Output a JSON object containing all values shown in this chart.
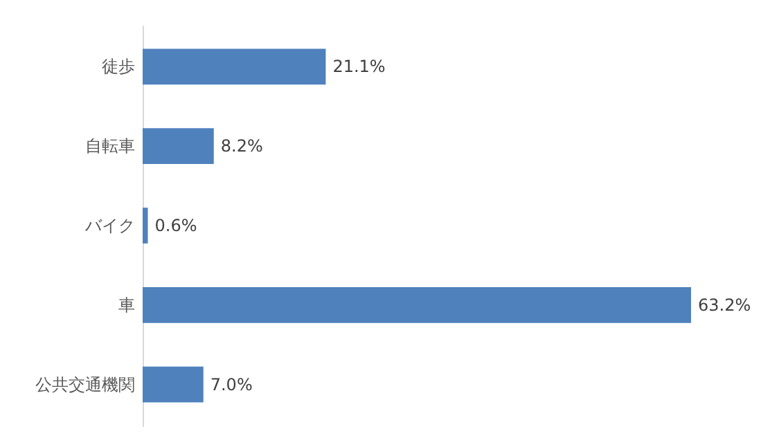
{
  "chart_data": {
    "type": "bar",
    "orientation": "horizontal",
    "categories": [
      "徒歩",
      "自転車",
      "バイク",
      "車",
      "公共交通機関"
    ],
    "values": [
      21.1,
      8.2,
      0.6,
      63.2,
      7.0
    ],
    "value_labels": [
      "21.1%",
      "8.2%",
      "0.6%",
      "63.2%",
      "7.0%"
    ],
    "color": "#4f81bd"
  }
}
